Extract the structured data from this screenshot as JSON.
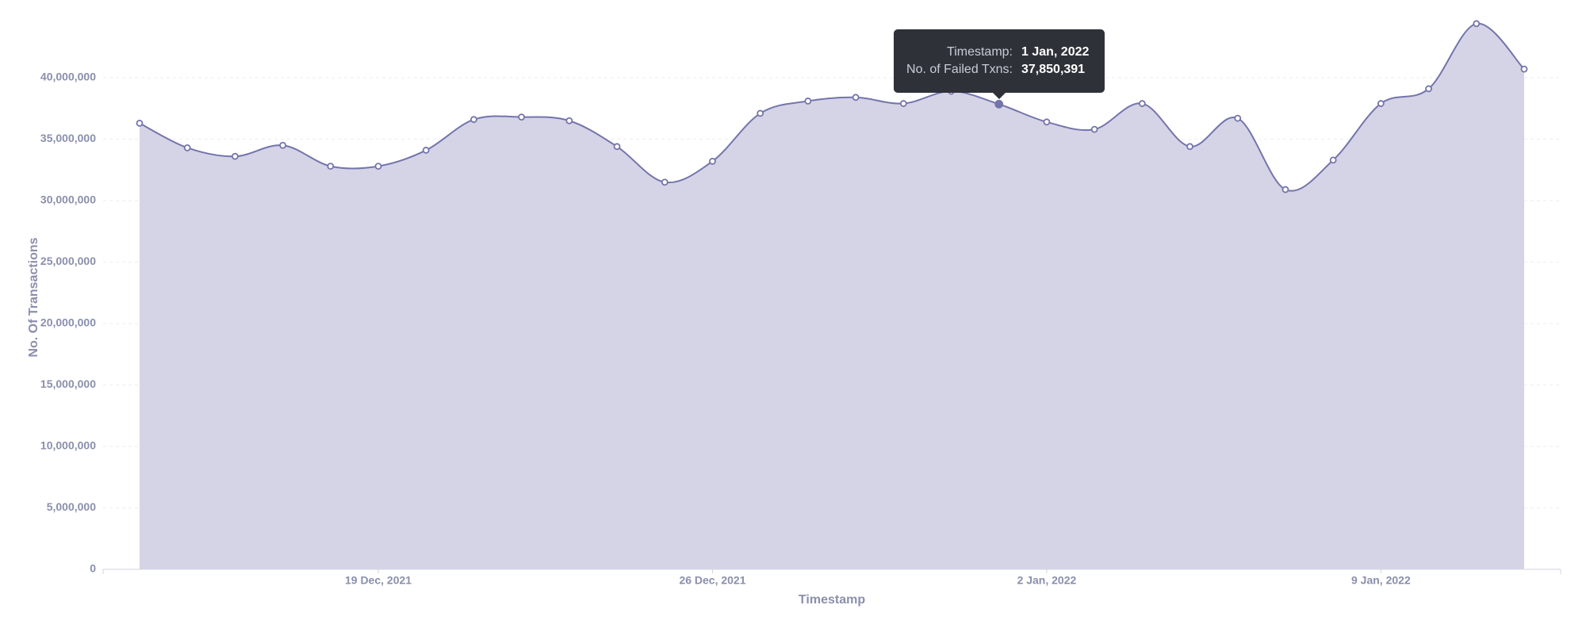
{
  "chart_data": {
    "type": "area",
    "x_label": "Timestamp",
    "y_label": "No. Of Transactions",
    "x": [
      "2021-12-14",
      "2021-12-15",
      "2021-12-16",
      "2021-12-17",
      "2021-12-18",
      "2021-12-19",
      "2021-12-20",
      "2021-12-21",
      "2021-12-22",
      "2021-12-23",
      "2021-12-24",
      "2021-12-25",
      "2021-12-26",
      "2021-12-27",
      "2021-12-28",
      "2021-12-29",
      "2021-12-30",
      "2021-12-31",
      "2022-01-01",
      "2022-01-02",
      "2022-01-03",
      "2022-01-04",
      "2022-01-05",
      "2022-01-06",
      "2022-01-07",
      "2022-01-08",
      "2022-01-09",
      "2022-01-10",
      "2022-01-11",
      "2022-01-12"
    ],
    "series": [
      {
        "name": "No. of Failed Txns",
        "color": "#7374ad",
        "values": [
          36300000,
          34300000,
          33600000,
          34500000,
          32800000,
          32800000,
          34100000,
          36600000,
          36800000,
          36500000,
          34400000,
          31500000,
          33200000,
          37100000,
          38100000,
          38400000,
          37900000,
          38900000,
          37850391,
          36400000,
          35800000,
          37900000,
          34400000,
          36700000,
          30900000,
          33300000,
          37900000,
          39100000,
          44400000,
          40700000
        ]
      }
    ],
    "fill_color": "#d5d4e6",
    "ylim": [
      0,
      45000000
    ],
    "yticks": [
      0,
      {
        "value": 5000000,
        "label": "5,000,000"
      },
      {
        "value": 10000000,
        "label": "10,000,000"
      },
      {
        "value": 15000000,
        "label": "15,000,000"
      },
      {
        "value": 20000000,
        "label": "20,000,000"
      },
      {
        "value": 25000000,
        "label": "25,000,000"
      },
      {
        "value": 30000000,
        "label": "30,000,000"
      },
      {
        "value": 35000000,
        "label": "35,000,000"
      },
      {
        "value": 40000000,
        "label": "40,000,000"
      }
    ],
    "xticks": [
      {
        "value": "2021-12-19",
        "label": "19 Dec, 2021"
      },
      {
        "value": "2021-12-26",
        "label": "26 Dec, 2021"
      },
      {
        "value": "2022-01-02",
        "label": "2 Jan, 2022"
      },
      {
        "value": "2022-01-09",
        "label": "9 Jan, 2022"
      }
    ],
    "grid": true,
    "tooltip": {
      "rows": [
        {
          "label": "Timestamp:",
          "value": "1 Jan, 2022"
        },
        {
          "label": "No. of Failed Txns:",
          "value": "37,850,391"
        }
      ]
    }
  }
}
